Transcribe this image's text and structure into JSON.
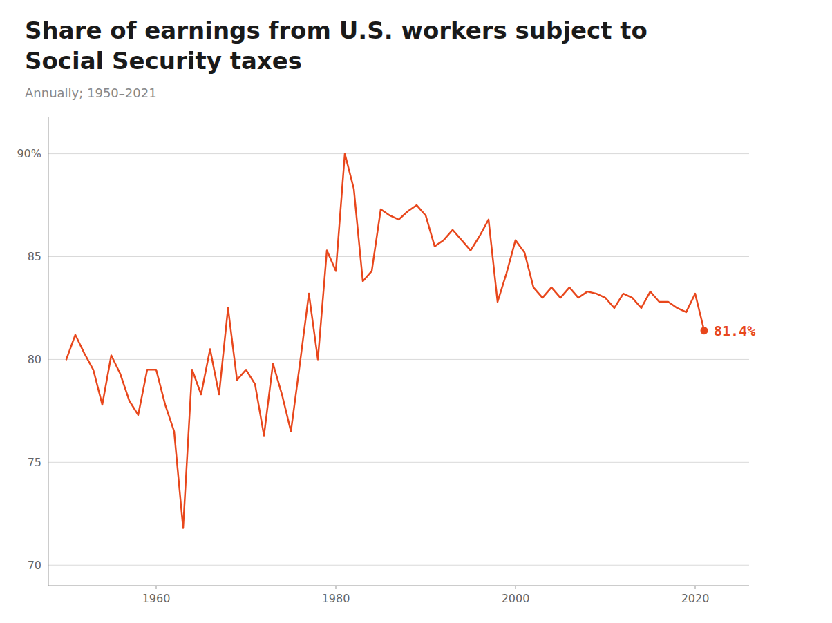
{
  "chart_data": {
    "type": "line",
    "title": "Share of earnings from U.S. workers subject to Social Security taxes",
    "subtitle": "Annually; 1950–2021",
    "annotation": "81.4%",
    "color": "#E8471C",
    "grid": true,
    "xlim": [
      1948,
      2026
    ],
    "xticks": [
      1960,
      1980,
      2000,
      2020
    ],
    "ylim": [
      69.0,
      91.8
    ],
    "yticks": [
      70,
      75,
      80,
      85,
      {
        "value": 90,
        "label": "90%"
      }
    ],
    "x": [
      1950,
      1951,
      1952,
      1953,
      1954,
      1955,
      1956,
      1957,
      1958,
      1959,
      1960,
      1961,
      1962,
      1963,
      1964,
      1965,
      1966,
      1967,
      1968,
      1969,
      1970,
      1971,
      1972,
      1973,
      1974,
      1975,
      1976,
      1977,
      1978,
      1979,
      1980,
      1981,
      1982,
      1983,
      1984,
      1985,
      1986,
      1987,
      1988,
      1989,
      1990,
      1991,
      1992,
      1993,
      1994,
      1995,
      1996,
      1997,
      1998,
      1999,
      2000,
      2001,
      2002,
      2003,
      2004,
      2005,
      2006,
      2007,
      2008,
      2009,
      2010,
      2011,
      2012,
      2013,
      2014,
      2015,
      2016,
      2017,
      2018,
      2019,
      2020,
      2021
    ],
    "values": [
      80.0,
      81.2,
      80.3,
      79.5,
      77.8,
      80.2,
      79.3,
      78.0,
      77.3,
      79.5,
      79.5,
      77.8,
      76.5,
      71.8,
      79.5,
      78.3,
      80.5,
      78.3,
      82.5,
      79.0,
      79.5,
      78.8,
      76.3,
      79.8,
      78.3,
      76.5,
      79.8,
      83.2,
      80.0,
      85.3,
      84.3,
      90.0,
      88.3,
      83.8,
      84.3,
      87.3,
      87.0,
      86.8,
      87.2,
      87.5,
      87.0,
      85.5,
      85.8,
      86.3,
      85.8,
      85.3,
      86.0,
      86.8,
      82.8,
      84.2,
      85.8,
      85.2,
      83.5,
      83.0,
      83.5,
      83.0,
      83.5,
      83.0,
      83.3,
      83.2,
      83.0,
      82.5,
      83.2,
      83.0,
      82.5,
      83.3,
      82.8,
      82.8,
      82.5,
      82.3,
      83.2,
      81.4
    ]
  }
}
